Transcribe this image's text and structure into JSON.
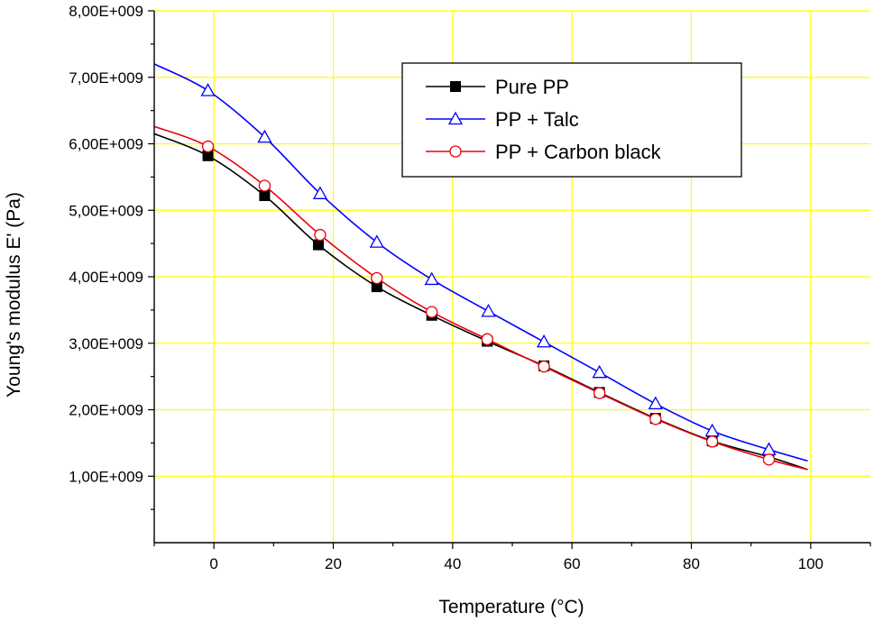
{
  "chart_data": {
    "type": "line",
    "xlabel": "Temperature (°C)",
    "ylabel": "Young's modulus E' (Pa)",
    "xlim": [
      -10,
      110
    ],
    "ylim": [
      0,
      8000000000
    ],
    "x_ticks": [
      0,
      20,
      40,
      60,
      80,
      100
    ],
    "x_tick_labels": [
      "0",
      "20",
      "40",
      "60",
      "80",
      "100"
    ],
    "y_ticks": [
      1000000000,
      2000000000,
      3000000000,
      4000000000,
      5000000000,
      6000000000,
      7000000000,
      8000000000
    ],
    "y_tick_labels": [
      "1,00E+009",
      "2,00E+009",
      "3,00E+009",
      "4,00E+009",
      "5,00E+009",
      "6,00E+009",
      "7,00E+009",
      "8,00E+009"
    ],
    "grid": true,
    "grid_color": "#ffff00",
    "legend_position": "top-right",
    "series": [
      {
        "name": "Pure PP",
        "color": "#000000",
        "marker": "filled-square",
        "curve_x": [
          -10,
          -1,
          8.5,
          17.5,
          27.3,
          36.5,
          45.8,
          55.3,
          64.6,
          74,
          83.5,
          93,
          99.5
        ],
        "curve_y": [
          6150000000,
          5820000000,
          5220000000,
          4480000000,
          3850000000,
          3420000000,
          3030000000,
          2660000000,
          2260000000,
          1870000000,
          1530000000,
          1290000000,
          1100000000
        ],
        "markers_x": [
          -1,
          8.5,
          17.5,
          27.3,
          36.5,
          45.8,
          55.3,
          64.6,
          74,
          83.5,
          93
        ],
        "markers_y": [
          5820000000,
          5220000000,
          4480000000,
          3850000000,
          3420000000,
          3030000000,
          2660000000,
          2260000000,
          1870000000,
          1530000000,
          1290000000
        ]
      },
      {
        "name": "PP + Talc",
        "color": "#0000ff",
        "marker": "open-triangle",
        "curve_x": [
          -10,
          -1,
          8.5,
          17.8,
          27.3,
          36.5,
          46,
          55.3,
          64.6,
          74,
          83.5,
          93,
          99.5
        ],
        "curve_y": [
          7200000000,
          6800000000,
          6100000000,
          5250000000,
          4520000000,
          3960000000,
          3480000000,
          3020000000,
          2560000000,
          2090000000,
          1680000000,
          1400000000,
          1230000000
        ],
        "markers_x": [
          -1,
          8.5,
          17.8,
          27.3,
          36.5,
          46,
          55.3,
          64.6,
          74,
          83.5,
          93
        ],
        "markers_y": [
          6800000000,
          6100000000,
          5250000000,
          4520000000,
          3960000000,
          3480000000,
          3020000000,
          2560000000,
          2090000000,
          1680000000,
          1400000000
        ]
      },
      {
        "name": "PP + Carbon black",
        "color": "#e8000a",
        "marker": "open-circle",
        "curve_x": [
          -10,
          -1,
          8.5,
          17.8,
          27.3,
          36.5,
          45.8,
          55.3,
          64.6,
          74,
          83.5,
          93,
          99.5
        ],
        "curve_y": [
          6260000000,
          5960000000,
          5370000000,
          4630000000,
          3980000000,
          3470000000,
          3060000000,
          2650000000,
          2250000000,
          1860000000,
          1520000000,
          1250000000,
          1100000000
        ],
        "markers_x": [
          -1,
          8.5,
          17.8,
          27.3,
          36.5,
          45.8,
          55.3,
          64.6,
          74,
          83.5,
          93
        ],
        "markers_y": [
          5960000000,
          5370000000,
          4630000000,
          3980000000,
          3470000000,
          3060000000,
          2650000000,
          2250000000,
          1860000000,
          1520000000,
          1250000000
        ]
      }
    ]
  }
}
